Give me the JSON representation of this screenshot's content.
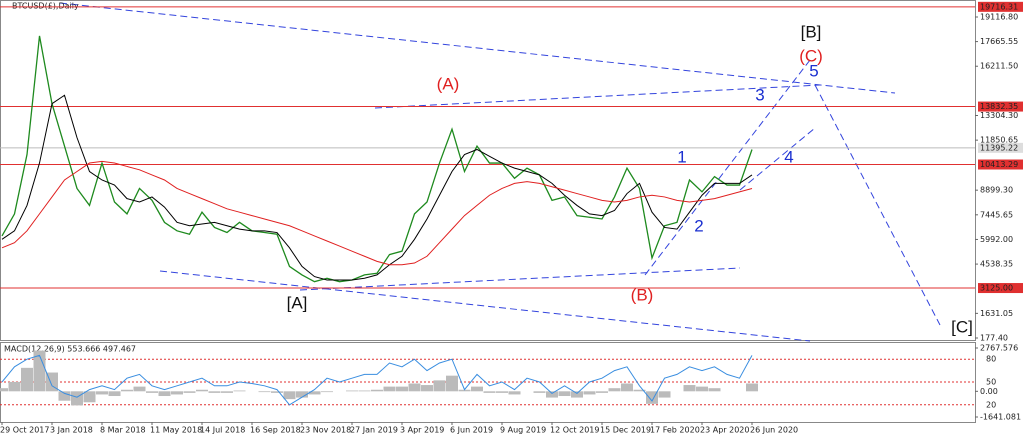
{
  "chart_data": [
    {
      "type": "line",
      "title": "BTCUSD(£),Daily",
      "categories": [
        "29 Oct 2017",
        null,
        null,
        null,
        "3 Jan 2018",
        null,
        null,
        null,
        "8 Mar 2018",
        null,
        null,
        null,
        "11 May 2018",
        null,
        null,
        null,
        "14 Jul 2018",
        null,
        null,
        null,
        "16 Sep 2018",
        null,
        null,
        null,
        "23 Nov 2018",
        null,
        null,
        null,
        "27 Jan 2019",
        null,
        null,
        null,
        "3 Apr 2019",
        null,
        null,
        null,
        "6 Jun 2019",
        null,
        null,
        null,
        "9 Aug 2019",
        null,
        null,
        null,
        "12 Oct 2019",
        null,
        null,
        null,
        "15 Dec 2019",
        null,
        null,
        null,
        "17 Feb 2020",
        null,
        null,
        null,
        "23 Apr 2020",
        null,
        null,
        null,
        "26 Jun 2020"
      ],
      "series": [
        {
          "color": "#1e8a1e",
          "values": [
            6200,
            7500,
            11000,
            18000,
            14000,
            11500,
            9000,
            8000,
            10500,
            8200,
            7500,
            9000,
            8300,
            7000,
            6500,
            6300,
            7600,
            6700,
            6400,
            7000,
            6500,
            6400,
            6300,
            4400,
            3900,
            3500,
            3700,
            3500,
            3600,
            3900,
            4000,
            5100,
            5300,
            7500,
            8200,
            10500,
            12500,
            10000,
            11500,
            10500,
            10500,
            9600,
            10200,
            9800,
            8300,
            8500,
            7400,
            7300,
            7200,
            8500,
            10200,
            9000,
            4900,
            6800,
            7000,
            9500,
            8800,
            9700,
            9200,
            9200,
            11300
          ]
        },
        {
          "color": "#000000",
          "values": [
            6000,
            6500,
            8000,
            10500,
            14000,
            14500,
            12000,
            10000,
            9500,
            9200,
            8400,
            8200,
            8500,
            7900,
            7000,
            6800,
            6900,
            7000,
            6800,
            6600,
            6500,
            6500,
            6400,
            5500,
            4400,
            3800,
            3600,
            3600,
            3600,
            3700,
            3900,
            4500,
            5000,
            6000,
            7200,
            8600,
            10000,
            11000,
            11300,
            10900,
            10500,
            10200,
            10000,
            9800,
            9300,
            8600,
            8000,
            7500,
            7400,
            7700,
            8700,
            9300,
            7600,
            6700,
            6600,
            7600,
            8600,
            9300,
            9300,
            9300,
            9800
          ]
        },
        {
          "color": "#e02020",
          "values": [
            5500,
            5800,
            6500,
            7500,
            8500,
            9500,
            10000,
            10500,
            10600,
            10500,
            10300,
            10100,
            9800,
            9500,
            9000,
            8700,
            8400,
            8100,
            7800,
            7600,
            7400,
            7200,
            7000,
            6800,
            6500,
            6200,
            5900,
            5600,
            5300,
            5000,
            4700,
            4500,
            4500,
            4600,
            5000,
            5800,
            6600,
            7400,
            8000,
            8600,
            9000,
            9300,
            9400,
            9300,
            9100,
            8900,
            8700,
            8500,
            8300,
            8200,
            8300,
            8500,
            8600,
            8500,
            8300,
            8200,
            8300,
            8400,
            8600,
            8800,
            9000
          ]
        }
      ],
      "ylim": [
        59.4,
        20119.4
      ],
      "yticks": [
        {
          "value": 19116.8,
          "label": "19116.80"
        },
        17665.55,
        {
          "value": 16211.5,
          "label": "16211.50"
        },
        {
          "value": 13304.3,
          "label": "13304.30"
        },
        11850.65,
        {
          "value": 8899.3,
          "label": "8899.30"
        },
        7445.65,
        {
          "value": 5992,
          "label": "5992.00"
        },
        4538.35,
        1631.05,
        {
          "value": 177.4,
          "label": "177.40"
        }
      ],
      "levels": [
        19716.31,
        13832.35,
        10413.29,
        {
          "value": 3125,
          "label": "3125.00"
        }
      ],
      "level_color": "#e03030",
      "current_price": 11395.22,
      "annotations": [
        {
          "text": "(A)",
          "color": "#e02020"
        },
        {
          "text": "(B)",
          "color": "#e02020"
        },
        {
          "text": "(C)",
          "color": "#e02020"
        },
        {
          "text": "[A]",
          "color": "#111111"
        },
        {
          "text": "[B]",
          "color": "#111111"
        },
        {
          "text": "[C]",
          "color": "#111111"
        },
        {
          "text": "1",
          "color": "#1a2fd0"
        },
        {
          "text": "2",
          "color": "#1a2fd0"
        },
        {
          "text": "3",
          "color": "#1a2fd0"
        },
        {
          "text": "4",
          "color": "#1a2fd0"
        },
        {
          "text": "5",
          "color": "#1a2fd0"
        }
      ]
    },
    {
      "type": "macd",
      "title": "MACD(12,26,9) 553.666 497.467",
      "series": [
        {
          "color": "#bbbbbb",
          "values": [
            200,
            600,
            1500,
            2600,
            1200,
            -600,
            -900,
            -700,
            -200,
            -300,
            100,
            300,
            -100,
            -300,
            -200,
            -100,
            100,
            -100,
            -100,
            50,
            0,
            -50,
            -100,
            -500,
            -400,
            -200,
            -50,
            0,
            50,
            50,
            100,
            300,
            300,
            500,
            400,
            700,
            1000,
            100,
            300,
            -100,
            -100,
            -200,
            0,
            -100,
            -400,
            -300,
            -400,
            -200,
            -100,
            200,
            500,
            100,
            -800,
            -400,
            0,
            400,
            300,
            200,
            0,
            0,
            500
          ]
        },
        {
          "color": "#3a8ee0",
          "axis": "y2",
          "values": [
            50,
            70,
            80,
            85,
            45,
            35,
            30,
            40,
            45,
            40,
            55,
            60,
            45,
            40,
            45,
            50,
            55,
            45,
            45,
            50,
            48,
            45,
            40,
            20,
            30,
            40,
            55,
            50,
            55,
            60,
            60,
            75,
            70,
            80,
            65,
            75,
            80,
            40,
            60,
            45,
            50,
            40,
            55,
            50,
            35,
            45,
            35,
            50,
            55,
            65,
            70,
            45,
            25,
            55,
            60,
            70,
            65,
            70,
            60,
            55,
            85
          ]
        }
      ],
      "ylim": [
        -1641.081,
        2767.576
      ],
      "yticks": [
        2767.576,
        {
          "value": 0,
          "label": "0.00"
        },
        -1641.081
      ],
      "y2lim": [
        0,
        100
      ],
      "y2ticks": [
        80,
        50,
        20
      ]
    }
  ]
}
